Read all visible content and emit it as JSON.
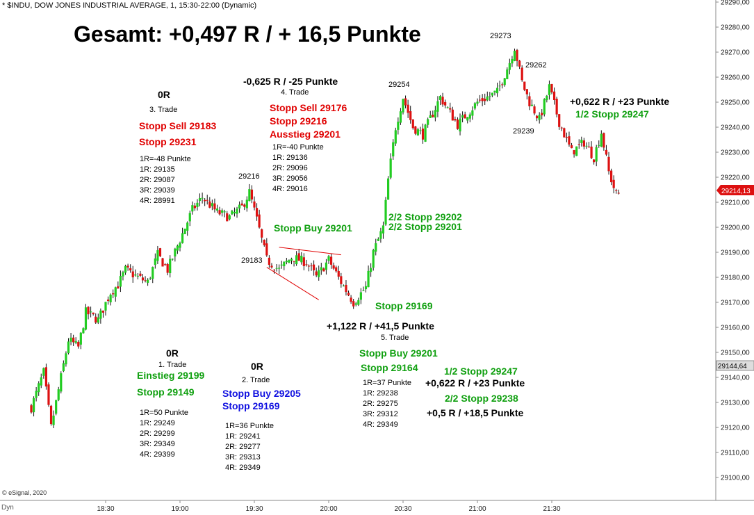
{
  "header": {
    "title": "* $INDU, DOW JONES INDUSTRIAL AVERAGE, 1, 15:30-22:00 (Dynamic)",
    "copyright": "© eSignal, 2020",
    "dyn_label": "Dyn"
  },
  "summary": {
    "grand_total": "Gesamt: +0,497 R / + 16,5 Punkte"
  },
  "trades": [
    {
      "result": "0R",
      "title": "1. Trade",
      "orders": [
        {
          "text": "Einstieg 29199",
          "color": "green"
        },
        {
          "text": "Stopp 29149",
          "color": "green"
        }
      ],
      "r_lines": [
        "1R=50 Punkte",
        "1R: 29249",
        "2R: 29299",
        "3R: 29349",
        "4R: 29399"
      ]
    },
    {
      "result": "0R",
      "title": "2. Trade",
      "orders": [
        {
          "text": "Stopp Buy 29205",
          "color": "blue"
        },
        {
          "text": "Stopp 29169",
          "color": "blue"
        }
      ],
      "r_lines": [
        "1R=36 Punkte",
        "1R: 29241",
        "2R: 29277",
        "3R: 29313",
        "4R: 29349"
      ]
    },
    {
      "result": "0R",
      "title": "3. Trade",
      "orders": [
        {
          "text": "Stopp Sell 29183",
          "color": "red"
        },
        {
          "text": "Stopp 29231",
          "color": "red"
        }
      ],
      "r_lines": [
        "1R=-48 Punkte",
        "1R: 29135",
        "2R: 29087",
        "3R: 29039",
        "4R: 28991"
      ]
    },
    {
      "result": "-0,625 R / -25 Punkte",
      "title": "4. Trade",
      "orders": [
        {
          "text": "Stopp Sell 29176",
          "color": "red"
        },
        {
          "text": "Stopp 29216",
          "color": "red"
        },
        {
          "text": "Ausstieg 29201",
          "color": "red"
        }
      ],
      "r_lines": [
        "1R=-40 Punkte",
        "1R: 29136",
        "2R: 29096",
        "3R: 29056",
        "4R: 29016"
      ]
    },
    {
      "result": "+1,122 R / +41,5 Punkte",
      "title": "5. Trade",
      "orders": [
        {
          "text": "Stopp Buy 29201",
          "color": "green"
        },
        {
          "text": "Stopp 29164",
          "color": "green"
        }
      ],
      "r_lines": [
        "1R=37 Punkte",
        "1R: 29238",
        "2R: 29275",
        "3R: 29312",
        "4R: 29349"
      ]
    }
  ],
  "annotations": {
    "stopp_buy_29201": "Stopp Buy 29201",
    "stopp_29169": "Stopp 29169",
    "stop_2_2_a": "2/2 Stopp 29202",
    "stop_2_2_b": "2/2 Stopp 29201",
    "half_stop_right_result": "+0,622 R / +23 Punkte",
    "half_stop_right": "1/2 Stopp 29247",
    "half_stop_mid": "1/2 Stopp 29247",
    "half_stop_mid_result": "+0,622 R / +23 Punkte",
    "second_half_stop": "2/2 Stopp 29238",
    "second_half_result": "+0,5 R / +18,5 Punkte"
  },
  "price_labels": [
    "29273",
    "29262",
    "29254",
    "29239",
    "29216",
    "29183"
  ],
  "colors": {
    "up_candle": "#22cc22",
    "down_candle": "#dd1111",
    "red_text": "#e00000",
    "green_text": "#10a010",
    "blue_text": "#1010e0",
    "current_price_bg": "#dd1111"
  },
  "chart_data": {
    "type": "candlestick",
    "symbol": "$INDU",
    "timeframe": "1",
    "session": "15:30-22:00",
    "x_ticks": [
      "18:30",
      "19:00",
      "19:30",
      "20:00",
      "20:30",
      "21:00",
      "21:30"
    ],
    "y_ticks": [
      "29290,00",
      "29280,00",
      "29270,00",
      "29260,00",
      "29250,00",
      "29240,00",
      "29230,00",
      "29220,00",
      "29210,00",
      "29200,00",
      "29190,00",
      "29180,00",
      "29170,00",
      "29160,00",
      "29150,00",
      "29140,00",
      "29130,00",
      "29120,00",
      "29110,00",
      "29100,00"
    ],
    "ylim": [
      29096.5,
      29292
    ],
    "current_price": "29214,13",
    "previous_close": "29144,64",
    "close_path": [
      [
        "18:00",
        29128
      ],
      [
        "18:05",
        29142
      ],
      [
        "18:08",
        29120
      ],
      [
        "18:12",
        29140
      ],
      [
        "18:15",
        29155
      ],
      [
        "18:19",
        29152
      ],
      [
        "18:22",
        29166
      ],
      [
        "18:27",
        29163
      ],
      [
        "18:32",
        29174
      ],
      [
        "18:35",
        29177
      ],
      [
        "18:38",
        29183
      ],
      [
        "18:43",
        29180
      ],
      [
        "18:47",
        29178
      ],
      [
        "18:51",
        29189
      ],
      [
        "18:55",
        29183
      ],
      [
        "19:00",
        29195
      ],
      [
        "19:05",
        29207
      ],
      [
        "19:09",
        29212
      ],
      [
        "19:15",
        29206
      ],
      [
        "19:20",
        29204
      ],
      [
        "19:25",
        29208
      ],
      [
        "19:28",
        29214
      ],
      [
        "19:31",
        29203
      ],
      [
        "19:35",
        29187
      ],
      [
        "19:40",
        29183
      ],
      [
        "19:45",
        29188
      ],
      [
        "19:51",
        29186
      ],
      [
        "19:55",
        29180
      ],
      [
        "20:00",
        29187
      ],
      [
        "20:05",
        29178
      ],
      [
        "20:10",
        29170
      ],
      [
        "20:15",
        29176
      ],
      [
        "20:18",
        29190
      ],
      [
        "20:22",
        29200
      ],
      [
        "20:24",
        29219
      ],
      [
        "20:27",
        29240
      ],
      [
        "20:30",
        29252
      ],
      [
        "20:34",
        29240
      ],
      [
        "20:38",
        29237
      ],
      [
        "20:45",
        29252
      ],
      [
        "20:52",
        29241
      ],
      [
        "21:00",
        29250
      ],
      [
        "21:08",
        29254
      ],
      [
        "21:13",
        29266
      ],
      [
        "21:15",
        29272
      ],
      [
        "21:18",
        29258
      ],
      [
        "21:21",
        29250
      ],
      [
        "21:25",
        29243
      ],
      [
        "21:29",
        29256
      ],
      [
        "21:33",
        29242
      ],
      [
        "21:38",
        29230
      ],
      [
        "21:43",
        29234
      ],
      [
        "21:47",
        29228
      ],
      [
        "21:50",
        29238
      ],
      [
        "21:53",
        29222
      ],
      [
        "21:56",
        29213
      ],
      [
        "21:58",
        29214
      ]
    ],
    "triangle": {
      "upper": [
        [
          "19:40",
          29192
        ],
        [
          "20:05",
          29189
        ]
      ],
      "lower": [
        [
          "19:35",
          29184
        ],
        [
          "19:56",
          29171
        ]
      ]
    }
  }
}
